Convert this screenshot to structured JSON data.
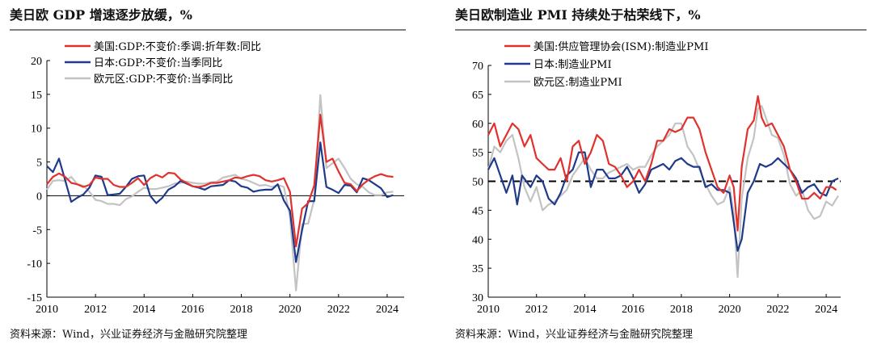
{
  "colors": {
    "us": "#e0312c",
    "japan": "#1f3a8a",
    "euro": "#c3c3c3"
  },
  "chart_data": [
    {
      "type": "line",
      "title": "美日欧 GDP 增速逐步放缓，%",
      "source": "资料来源：Wind，兴业证券经济与金融研究院整理",
      "xlim": [
        2010,
        2024.7
      ],
      "ylim": [
        -15,
        20
      ],
      "xticks": [
        2010,
        2012,
        2014,
        2016,
        2018,
        2020,
        2022,
        2024
      ],
      "yticks": [
        -15,
        -10,
        -5,
        0,
        5,
        10,
        15,
        20
      ],
      "legend_position": "top-center",
      "series": [
        {
          "name": "美国:GDP:不变价:季调:折年数:同比",
          "color": "us",
          "x": [
            2010.0,
            2010.25,
            2010.5,
            2010.75,
            2011.0,
            2011.25,
            2011.5,
            2011.75,
            2012.0,
            2012.25,
            2012.5,
            2012.75,
            2013.0,
            2013.25,
            2013.5,
            2013.75,
            2014.0,
            2014.25,
            2014.5,
            2014.75,
            2015.0,
            2015.25,
            2015.5,
            2015.75,
            2016.0,
            2016.25,
            2016.5,
            2016.75,
            2017.0,
            2017.25,
            2017.5,
            2017.75,
            2018.0,
            2018.25,
            2018.5,
            2018.75,
            2019.0,
            2019.25,
            2019.5,
            2019.75,
            2020.0,
            2020.25,
            2020.5,
            2020.75,
            2021.0,
            2021.25,
            2021.5,
            2021.75,
            2022.0,
            2022.25,
            2022.5,
            2022.75,
            2023.0,
            2023.25,
            2023.5,
            2023.75,
            2024.0,
            2024.25
          ],
          "y": [
            1.7,
            2.8,
            3.3,
            2.8,
            1.9,
            1.7,
            1.3,
            1.6,
            2.7,
            2.5,
            2.5,
            1.6,
            1.3,
            1.3,
            1.9,
            2.6,
            1.6,
            2.6,
            3.1,
            2.7,
            3.4,
            3.3,
            2.4,
            1.9,
            1.4,
            1.3,
            1.5,
            1.9,
            1.9,
            2.1,
            2.3,
            2.7,
            2.6,
            2.9,
            3.1,
            2.9,
            2.3,
            2.1,
            2.3,
            2.6,
            0.6,
            -7.5,
            -1.9,
            -1.1,
            1.5,
            12.0,
            5.0,
            5.5,
            3.6,
            1.9,
            1.7,
            0.7,
            1.7,
            2.4,
            2.9,
            3.2,
            2.9,
            2.8
          ]
        },
        {
          "name": "日本:GDP:不变价:当季同比",
          "color": "japan",
          "x": [
            2010.0,
            2010.25,
            2010.5,
            2010.75,
            2011.0,
            2011.25,
            2011.5,
            2011.75,
            2012.0,
            2012.25,
            2012.5,
            2012.75,
            2013.0,
            2013.25,
            2013.5,
            2013.75,
            2014.0,
            2014.25,
            2014.5,
            2014.75,
            2015.0,
            2015.25,
            2015.5,
            2015.75,
            2016.0,
            2016.25,
            2016.5,
            2016.75,
            2017.0,
            2017.25,
            2017.5,
            2017.75,
            2018.0,
            2018.25,
            2018.5,
            2018.75,
            2019.0,
            2019.25,
            2019.5,
            2019.75,
            2020.0,
            2020.25,
            2020.5,
            2020.75,
            2021.0,
            2021.25,
            2021.5,
            2021.75,
            2022.0,
            2022.25,
            2022.5,
            2022.75,
            2023.0,
            2023.25,
            2023.5,
            2023.75,
            2024.0,
            2024.25
          ],
          "y": [
            4.4,
            3.5,
            5.5,
            2.3,
            -0.9,
            -0.3,
            0.2,
            1.2,
            3.0,
            2.8,
            0.1,
            0.2,
            0.3,
            1.3,
            2.5,
            2.9,
            3.0,
            0.0,
            -1.1,
            -0.3,
            0.9,
            1.4,
            2.2,
            1.8,
            1.4,
            1.2,
            0.9,
            1.4,
            1.5,
            1.6,
            2.3,
            2.1,
            1.4,
            1.2,
            0.6,
            0.8,
            0.9,
            0.9,
            1.7,
            -0.7,
            -2.2,
            -9.8,
            -5.1,
            -0.8,
            -0.8,
            7.9,
            1.3,
            0.9,
            0.4,
            1.6,
            1.5,
            0.5,
            2.6,
            2.3,
            1.7,
            1.1,
            -0.2,
            0.1
          ]
        },
        {
          "name": "欧元区:GDP:不变价:当季同比",
          "color": "euro",
          "x": [
            2010.0,
            2010.25,
            2010.5,
            2010.75,
            2011.0,
            2011.25,
            2011.5,
            2011.75,
            2012.0,
            2012.25,
            2012.5,
            2012.75,
            2013.0,
            2013.25,
            2013.5,
            2013.75,
            2014.0,
            2014.25,
            2014.5,
            2014.75,
            2015.0,
            2015.25,
            2015.5,
            2015.75,
            2016.0,
            2016.25,
            2016.5,
            2016.75,
            2017.0,
            2017.25,
            2017.5,
            2017.75,
            2018.0,
            2018.25,
            2018.5,
            2018.75,
            2019.0,
            2019.25,
            2019.5,
            2019.75,
            2020.0,
            2020.25,
            2020.5,
            2020.75,
            2021.0,
            2021.25,
            2021.5,
            2021.75,
            2022.0,
            2022.25,
            2022.5,
            2022.75,
            2023.0,
            2023.25,
            2023.5,
            2023.75,
            2024.0,
            2024.25
          ],
          "y": [
            0.9,
            2.2,
            2.3,
            2.2,
            2.8,
            1.7,
            1.5,
            0.6,
            -0.6,
            -0.8,
            -1.2,
            -1.2,
            -1.4,
            -0.5,
            -0.1,
            0.6,
            1.2,
            1.0,
            1.0,
            1.2,
            1.4,
            1.8,
            1.9,
            2.1,
            1.9,
            1.8,
            1.8,
            2.0,
            2.1,
            2.7,
            2.9,
            3.1,
            2.5,
            2.3,
            1.9,
            1.5,
            1.6,
            1.3,
            1.6,
            1.3,
            -3.1,
            -14.0,
            -4.2,
            -4.1,
            -0.6,
            14.9,
            4.1,
            4.8,
            5.5,
            4.1,
            2.5,
            1.7,
            1.3,
            0.5,
            0.1,
            0.1,
            0.5,
            0.6
          ]
        }
      ]
    },
    {
      "type": "line",
      "title": "美日欧制造业 PMI 持续处于枯荣线下，%",
      "source": "资料来源：Wind，兴业证券经济与金融研究院整理",
      "xlim": [
        2010,
        2024.6
      ],
      "ylim": [
        30,
        70
      ],
      "xticks": [
        2010,
        2012,
        2014,
        2016,
        2018,
        2020,
        2022,
        2024
      ],
      "yticks": [
        30,
        35,
        40,
        45,
        50,
        55,
        60,
        65,
        70
      ],
      "reference_line": 50,
      "legend_position": "top-left",
      "series": [
        {
          "name": "美国:供应管理协会(ISM):制造业PMI",
          "color": "us",
          "x": [
            2010.0,
            2010.25,
            2010.5,
            2010.75,
            2011.0,
            2011.25,
            2011.5,
            2011.75,
            2012.0,
            2012.25,
            2012.5,
            2012.75,
            2013.0,
            2013.25,
            2013.5,
            2013.75,
            2014.0,
            2014.25,
            2014.5,
            2014.75,
            2015.0,
            2015.25,
            2015.5,
            2015.75,
            2016.0,
            2016.25,
            2016.5,
            2016.75,
            2017.0,
            2017.25,
            2017.5,
            2017.75,
            2018.0,
            2018.25,
            2018.5,
            2018.75,
            2019.0,
            2019.25,
            2019.5,
            2019.75,
            2020.0,
            2020.17,
            2020.33,
            2020.5,
            2020.75,
            2021.0,
            2021.17,
            2021.33,
            2021.5,
            2021.75,
            2022.0,
            2022.25,
            2022.5,
            2022.75,
            2023.0,
            2023.25,
            2023.5,
            2023.75,
            2024.0,
            2024.25,
            2024.42
          ],
          "y": [
            58,
            60,
            56,
            58,
            60,
            59,
            56,
            58,
            54,
            53,
            52,
            52,
            54,
            50,
            56,
            57,
            53,
            55,
            58,
            57,
            53,
            52.5,
            51,
            49,
            50,
            52,
            50,
            53,
            57,
            57,
            59,
            58.5,
            59,
            61,
            61,
            59,
            55,
            52,
            49,
            48,
            51,
            49,
            41.5,
            52.5,
            59,
            60.5,
            64.7,
            61,
            59.5,
            60,
            58,
            56,
            52,
            50,
            47,
            47,
            48,
            47,
            49,
            49,
            48.5
          ]
        },
        {
          "name": "日本:制造业PMI",
          "color": "japan",
          "x": [
            2010.0,
            2010.25,
            2010.5,
            2010.75,
            2011.0,
            2011.2,
            2011.4,
            2011.75,
            2012.0,
            2012.25,
            2012.5,
            2012.75,
            2013.0,
            2013.25,
            2013.5,
            2013.75,
            2014.0,
            2014.25,
            2014.5,
            2014.75,
            2015.0,
            2015.25,
            2015.5,
            2015.75,
            2016.0,
            2016.25,
            2016.5,
            2016.75,
            2017.0,
            2017.25,
            2017.5,
            2017.75,
            2018.0,
            2018.25,
            2018.5,
            2018.75,
            2019.0,
            2019.25,
            2019.5,
            2019.75,
            2020.0,
            2020.17,
            2020.33,
            2020.5,
            2020.75,
            2021.0,
            2021.25,
            2021.5,
            2021.75,
            2022.0,
            2022.25,
            2022.5,
            2022.75,
            2023.0,
            2023.25,
            2023.5,
            2023.75,
            2024.0,
            2024.25,
            2024.5
          ],
          "y": [
            52,
            54,
            51,
            48,
            51,
            46,
            51,
            49,
            51,
            50,
            47,
            46,
            48,
            51,
            52,
            55,
            55,
            49,
            52,
            52,
            50.5,
            50.5,
            51,
            52.5,
            50.5,
            48,
            49.5,
            52,
            52.5,
            53,
            52,
            53.5,
            54,
            53,
            52.5,
            52.5,
            49,
            49.5,
            48.5,
            48.5,
            48,
            43,
            38,
            40,
            48,
            50,
            53,
            52.5,
            53,
            54,
            53,
            52,
            50.5,
            48,
            49,
            49.5,
            48,
            47.5,
            50,
            50.5
          ]
        },
        {
          "name": "欧元区:制造业PMI",
          "color": "euro",
          "x": [
            2010.0,
            2010.25,
            2010.5,
            2010.75,
            2011.0,
            2011.25,
            2011.5,
            2011.75,
            2012.0,
            2012.25,
            2012.5,
            2012.75,
            2013.0,
            2013.25,
            2013.5,
            2013.75,
            2014.0,
            2014.25,
            2014.5,
            2014.75,
            2015.0,
            2015.25,
            2015.5,
            2015.75,
            2016.0,
            2016.25,
            2016.5,
            2016.75,
            2017.0,
            2017.25,
            2017.5,
            2017.75,
            2018.0,
            2018.25,
            2018.5,
            2018.75,
            2019.0,
            2019.25,
            2019.5,
            2019.75,
            2020.0,
            2020.17,
            2020.33,
            2020.5,
            2020.75,
            2021.0,
            2021.17,
            2021.33,
            2021.5,
            2021.75,
            2022.0,
            2022.25,
            2022.5,
            2022.75,
            2023.0,
            2023.25,
            2023.5,
            2023.75,
            2024.0,
            2024.25,
            2024.5
          ],
          "y": [
            52,
            56,
            55,
            57,
            58,
            54,
            49,
            46.5,
            49,
            45,
            46,
            46.5,
            47.5,
            48.5,
            51,
            52.5,
            54,
            52,
            50.5,
            50.5,
            51.5,
            52,
            52.5,
            53,
            52,
            52.5,
            52.5,
            54.5,
            56,
            57,
            58,
            60,
            60,
            56,
            54.5,
            52,
            49.5,
            47.5,
            46,
            46.5,
            49,
            44.5,
            33.5,
            47,
            54,
            57.5,
            62.5,
            63,
            61,
            58,
            57.5,
            54.5,
            49.5,
            47.5,
            48.5,
            45,
            43.5,
            44,
            46.5,
            45.8,
            47.5
          ]
        }
      ]
    }
  ]
}
